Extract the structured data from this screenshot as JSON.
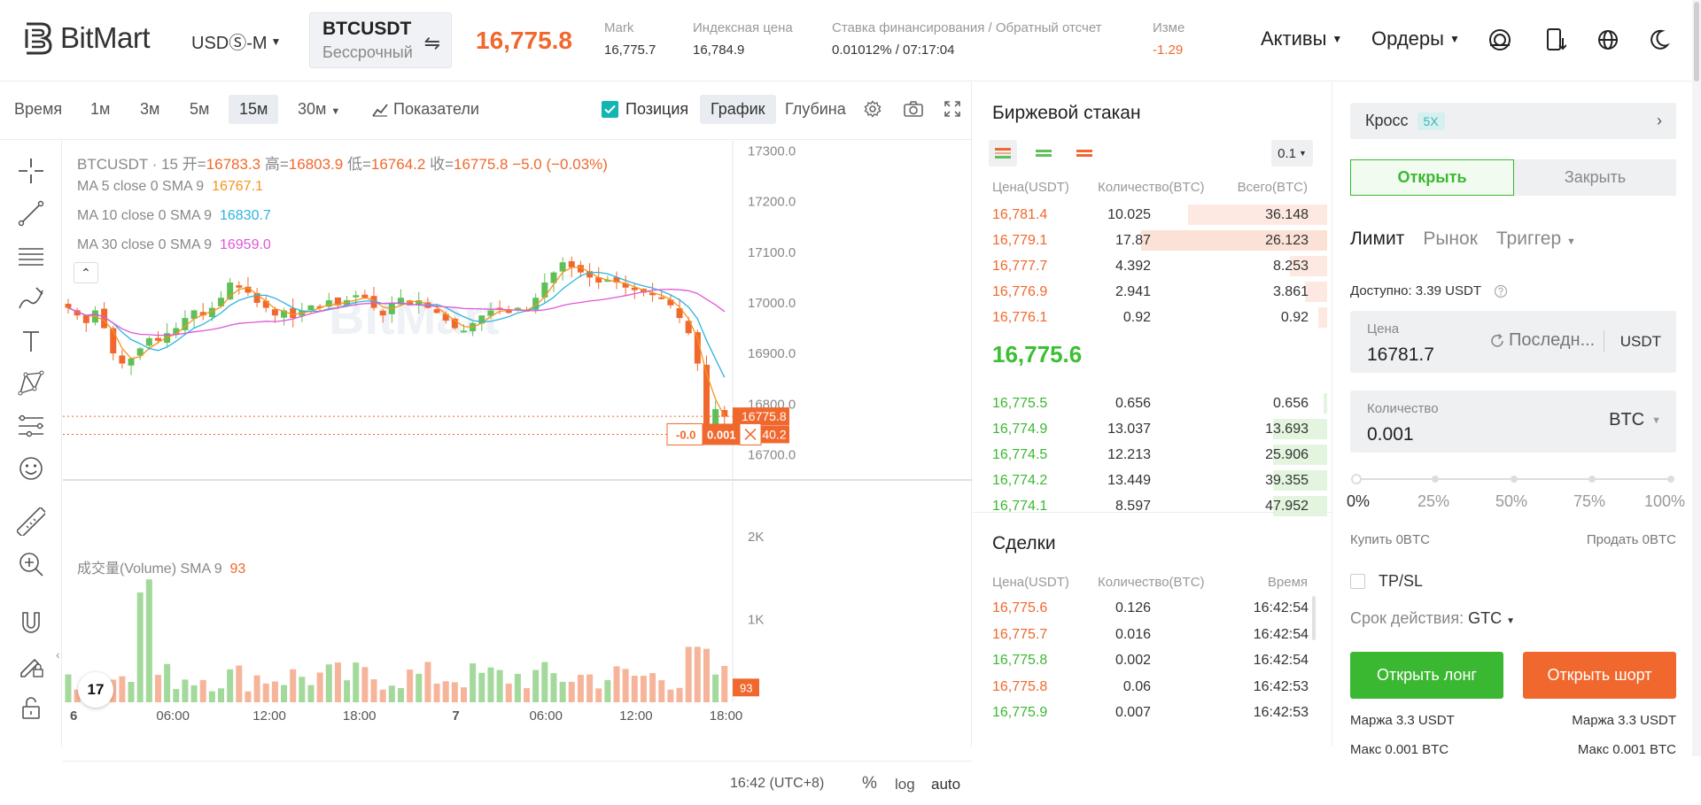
{
  "header": {
    "brand": "BitMart",
    "market_selector": "USDⓈ-M",
    "symbol": "BTCUSDT",
    "contract_type": "Бессрочный",
    "last_price": "16,775.8",
    "stats": [
      {
        "label": "Mark",
        "value": "16,775.7"
      },
      {
        "label": "Индексная цена",
        "value": "16,784.9"
      },
      {
        "label": "Ставка финансирования / Обратный отсчет",
        "value": "0.01012% / 07:17:04"
      },
      {
        "label": "Изме",
        "value": "-1.29"
      }
    ],
    "menu_assets": "Активы",
    "menu_orders": "Ордеры"
  },
  "chart_toolbar": {
    "intervals": [
      "Время",
      "1м",
      "3м",
      "5м",
      "15м",
      "30м"
    ],
    "active_interval": "15м",
    "indicators": "Показатели",
    "position": "Позиция",
    "view_chart": "График",
    "view_depth": "Глубина"
  },
  "chart": {
    "legend_symbol": "BTCUSDT · 15",
    "ohlc": [
      {
        "k": "开=",
        "v": "16783.3"
      },
      {
        "k": "高=",
        "v": "16803.9"
      },
      {
        "k": "低=",
        "v": "16764.2"
      },
      {
        "k": "收=",
        "v": "16775.8"
      }
    ],
    "change": "−5.0 (−0.03%)",
    "ma": [
      {
        "label": "MA 5 close 0 SMA 9",
        "value": "16767.1",
        "color": "#f7931a"
      },
      {
        "label": "MA 10 close 0 SMA 9",
        "value": "16830.7",
        "color": "#2fb3e0"
      },
      {
        "label": "MA 30 close 0 SMA 9",
        "value": "16959.0",
        "color": "#e056d8"
      }
    ],
    "volume_label": "成交量(Volume) SMA 9",
    "volume_value": "93",
    "price_ticks": [
      "17300.0",
      "17200.0",
      "17100.0",
      "17000.0",
      "16900.0",
      "16800.0",
      "16700.0"
    ],
    "price_tag_last": "16775.8",
    "price_tag_pos": "16740.2",
    "vol_ticks": [
      "2K",
      "1K"
    ],
    "vol_tag": "93",
    "position_pnl": "-0.0",
    "position_qty": "0.001",
    "time_ticks": [
      "6",
      "06:00",
      "12:00",
      "18:00",
      "7",
      "06:00",
      "12:00",
      "18:00"
    ],
    "timezone": "16:42 (UTC+8)",
    "percent": "%",
    "log": "log",
    "auto": "auto",
    "watermark": "BitMart",
    "tv_badge": "17",
    "colors": {
      "up": "#5fbf58",
      "down": "#f0682d"
    }
  },
  "chart_data": {
    "type": "candlestick",
    "interval": "15m",
    "ylim": [
      16650,
      17320
    ],
    "close_path": [
      16990,
      16975,
      16960,
      16985,
      16950,
      16900,
      16880,
      16890,
      16910,
      16930,
      16925,
      16940,
      16950,
      16970,
      16985,
      16975,
      16990,
      17010,
      17040,
      17030,
      17020,
      17000,
      16990,
      16975,
      16985,
      16970,
      16985,
      16995,
      16990,
      17005,
      16995,
      17005,
      17015,
      17010,
      16990,
      16975,
      17000,
      17010,
      16995,
      17005,
      16990,
      16980,
      16965,
      16950,
      16945,
      16960,
      16975,
      16985,
      16990,
      16980,
      16990,
      16985,
      17010,
      17040,
      17060,
      17080,
      17070,
      17060,
      17050,
      17040,
      17045,
      17040,
      17030,
      17025,
      17020,
      17015,
      17010,
      16995,
      16970,
      16940,
      16880,
      16760,
      16790,
      16775
    ]
  },
  "orderbook": {
    "title": "Биржевой стакан",
    "precision": "0.1",
    "headers": {
      "price": "Цена(USDT)",
      "qty": "Количество(BTC)",
      "total": "Всего(BTC)"
    },
    "asks": [
      {
        "price": "16,781.4",
        "qty": "10.025",
        "total": "36.148",
        "depth": 0.75
      },
      {
        "price": "16,779.1",
        "qty": "17.87",
        "total": "26.123",
        "depth": 1.0
      },
      {
        "price": "16,777.7",
        "qty": "4.392",
        "total": "8.253",
        "depth": 0.2
      },
      {
        "price": "16,776.9",
        "qty": "2.941",
        "total": "3.861",
        "depth": 0.12
      },
      {
        "price": "16,776.1",
        "qty": "0.92",
        "total": "0.92",
        "depth": 0.05
      }
    ],
    "mid_price": "16,775.6",
    "bids": [
      {
        "price": "16,775.5",
        "qty": "0.656",
        "total": "0.656",
        "depth": 0.02
      },
      {
        "price": "16,774.9",
        "qty": "13.037",
        "total": "13.693",
        "depth": 0.29
      },
      {
        "price": "16,774.5",
        "qty": "12.213",
        "total": "25.906",
        "depth": 0.29
      },
      {
        "price": "16,774.2",
        "qty": "13.449",
        "total": "39.355",
        "depth": 0.29
      },
      {
        "price": "16,774.1",
        "qty": "8.597",
        "total": "47.952",
        "depth": 0.29
      }
    ]
  },
  "trades": {
    "title": "Сделки",
    "headers": {
      "price": "Цена(USDT)",
      "qty": "Количество(BTC)",
      "time": "Время"
    },
    "rows": [
      {
        "price": "16,775.6",
        "qty": "0.126",
        "time": "16:42:54",
        "side": "sell"
      },
      {
        "price": "16,775.7",
        "qty": "0.016",
        "time": "16:42:54",
        "side": "sell"
      },
      {
        "price": "16,775.8",
        "qty": "0.002",
        "time": "16:42:54",
        "side": "buy"
      },
      {
        "price": "16,775.8",
        "qty": "0.06",
        "time": "16:42:53",
        "side": "sell"
      },
      {
        "price": "16,775.9",
        "qty": "0.007",
        "time": "16:42:53",
        "side": "buy"
      }
    ]
  },
  "form": {
    "margin_mode": "Кросс",
    "leverage": "5X",
    "tab_open": "Открыть",
    "tab_close": "Закрыть",
    "type_limit": "Лимит",
    "type_market": "Рынок",
    "type_trigger": "Триггер",
    "available": "Доступно: 3.39 USDT",
    "price_label": "Цена",
    "price_value": "16781.7",
    "price_last": "Последн...",
    "price_unit": "USDT",
    "qty_label": "Количество",
    "qty_value": "0.001",
    "qty_unit": "BTC",
    "slider_marks": [
      "0%",
      "25%",
      "50%",
      "75%",
      "100%"
    ],
    "buy_label": "Купить 0BTC",
    "sell_label": "Продать 0BTC",
    "tpsl": "TP/SL",
    "tif_label": "Срок действия:",
    "tif_value": "GTC",
    "btn_long": "Открыть лонг",
    "btn_short": "Открыть шорт",
    "margin_long": "Маржа 3.3 USDT",
    "margin_short": "Маржа 3.3 USDT",
    "max_long": "Макс 0.001 BTC",
    "max_short": "Макс 0.001 BTC"
  }
}
